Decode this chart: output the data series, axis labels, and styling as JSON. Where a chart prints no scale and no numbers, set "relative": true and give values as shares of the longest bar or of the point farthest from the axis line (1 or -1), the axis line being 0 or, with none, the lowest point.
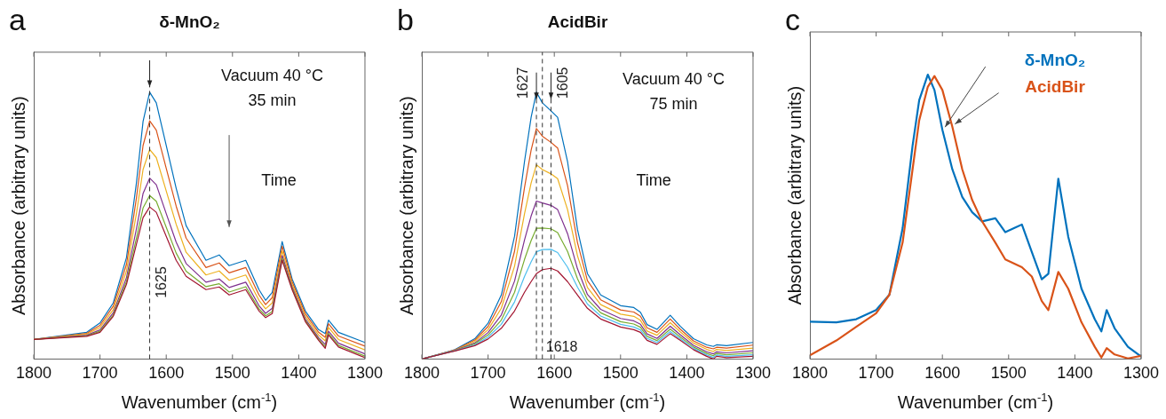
{
  "chart_data": [
    {
      "type": "line",
      "title": "δ-MnO₂",
      "xlabel": "Wavenumber (cm$^{-1}$)",
      "ylabel": "Absorbance (arbitrary units)",
      "relative": true,
      "x": [
        1800,
        1720,
        1700,
        1680,
        1660,
        1645,
        1635,
        1625,
        1615,
        1600,
        1585,
        1570,
        1540,
        1520,
        1505,
        1480,
        1460,
        1450,
        1440,
        1425,
        1410,
        1390,
        1370,
        1360,
        1355,
        1340,
        1300
      ],
      "xlim": [
        1800,
        1300
      ],
      "xticks": [
        1800,
        1700,
        1600,
        1500,
        1400,
        1300
      ],
      "legend": false,
      "grid": false,
      "line_style": "solid",
      "series": [
        {
          "color": "#0072bd",
          "values": [
            0.073,
            0.1,
            0.135,
            0.21,
            0.38,
            0.66,
            0.89,
            1.0,
            0.96,
            0.8,
            0.64,
            0.5,
            0.37,
            0.39,
            0.35,
            0.37,
            0.26,
            0.22,
            0.25,
            0.44,
            0.3,
            0.18,
            0.11,
            0.095,
            0.146,
            0.1,
            0.062
          ]
        },
        {
          "color": "#d95319",
          "values": [
            0.073,
            0.096,
            0.126,
            0.198,
            0.355,
            0.603,
            0.8,
            0.893,
            0.858,
            0.715,
            0.573,
            0.453,
            0.343,
            0.36,
            0.323,
            0.343,
            0.24,
            0.204,
            0.23,
            0.423,
            0.29,
            0.17,
            0.1,
            0.081,
            0.132,
            0.086,
            0.048
          ]
        },
        {
          "color": "#edb120",
          "values": [
            0.073,
            0.093,
            0.118,
            0.185,
            0.33,
            0.545,
            0.71,
            0.785,
            0.755,
            0.63,
            0.505,
            0.4,
            0.315,
            0.33,
            0.295,
            0.315,
            0.22,
            0.188,
            0.21,
            0.405,
            0.28,
            0.16,
            0.09,
            0.068,
            0.118,
            0.073,
            0.034
          ]
        },
        {
          "color": "#7e2f8e",
          "values": [
            0.073,
            0.089,
            0.109,
            0.173,
            0.305,
            0.488,
            0.62,
            0.678,
            0.653,
            0.545,
            0.438,
            0.358,
            0.288,
            0.3,
            0.268,
            0.288,
            0.2,
            0.171,
            0.19,
            0.388,
            0.27,
            0.15,
            0.08,
            0.054,
            0.104,
            0.059,
            0.019
          ]
        },
        {
          "color": "#77ac30",
          "values": [
            0.073,
            0.087,
            0.104,
            0.165,
            0.29,
            0.453,
            0.566,
            0.613,
            0.591,
            0.494,
            0.397,
            0.329,
            0.271,
            0.282,
            0.251,
            0.271,
            0.188,
            0.162,
            0.178,
            0.377,
            0.264,
            0.144,
            0.074,
            0.046,
            0.096,
            0.051,
            0.011
          ]
        },
        {
          "color": "#a2142f",
          "values": [
            0.073,
            0.085,
            0.1,
            0.16,
            0.28,
            0.43,
            0.53,
            0.57,
            0.55,
            0.46,
            0.37,
            0.31,
            0.26,
            0.27,
            0.24,
            0.26,
            0.18,
            0.155,
            0.17,
            0.37,
            0.26,
            0.14,
            0.07,
            0.04,
            0.09,
            0.045,
            0.005
          ]
        }
      ],
      "ref_lines": [
        {
          "axis": "x",
          "value": 1625,
          "label": "1625",
          "line_style": "dashed",
          "color": "#333333"
        }
      ],
      "annotations": [
        "a",
        "Vacuum 40 °C",
        "35 min",
        "Time"
      ]
    },
    {
      "type": "line",
      "title": "AcidBir",
      "xlabel": "Wavenumber (cm$^{-1}$)",
      "ylabel": "Absorbance (arbitrary units)",
      "relative": true,
      "x": [
        1800,
        1750,
        1720,
        1700,
        1680,
        1660,
        1645,
        1635,
        1627,
        1618,
        1605,
        1595,
        1580,
        1565,
        1550,
        1530,
        1500,
        1480,
        1470,
        1460,
        1445,
        1425,
        1410,
        1390,
        1370,
        1360,
        1355,
        1340,
        1300
      ],
      "xlim": [
        1800,
        1300
      ],
      "xticks": [
        1800,
        1700,
        1600,
        1500,
        1400,
        1300
      ],
      "legend": false,
      "grid": false,
      "line_style": "solid",
      "series": [
        {
          "color": "#0072bd",
          "values": [
            0,
            0.035,
            0.076,
            0.134,
            0.24,
            0.46,
            0.74,
            0.906,
            1.0,
            0.96,
            0.93,
            0.906,
            0.74,
            0.485,
            0.32,
            0.24,
            0.2,
            0.193,
            0.175,
            0.129,
            0.111,
            0.164,
            0.123,
            0.076,
            0.053,
            0.047,
            0.053,
            0.05,
            0.062
          ]
        },
        {
          "color": "#d95319",
          "values": [
            0,
            0.034,
            0.071,
            0.122,
            0.215,
            0.404,
            0.642,
            0.783,
            0.864,
            0.835,
            0.812,
            0.791,
            0.65,
            0.436,
            0.294,
            0.222,
            0.184,
            0.176,
            0.16,
            0.117,
            0.1,
            0.15,
            0.112,
            0.068,
            0.044,
            0.038,
            0.044,
            0.041,
            0.052
          ]
        },
        {
          "color": "#edb120",
          "values": [
            0,
            0.033,
            0.066,
            0.11,
            0.19,
            0.348,
            0.544,
            0.66,
            0.728,
            0.71,
            0.694,
            0.676,
            0.56,
            0.387,
            0.268,
            0.204,
            0.168,
            0.16,
            0.145,
            0.105,
            0.089,
            0.136,
            0.102,
            0.06,
            0.036,
            0.028,
            0.036,
            0.032,
            0.041
          ]
        },
        {
          "color": "#7e2f8e",
          "values": [
            0,
            0.032,
            0.06,
            0.099,
            0.165,
            0.292,
            0.446,
            0.536,
            0.592,
            0.585,
            0.576,
            0.56,
            0.47,
            0.338,
            0.242,
            0.186,
            0.152,
            0.143,
            0.13,
            0.094,
            0.077,
            0.123,
            0.091,
            0.051,
            0.027,
            0.019,
            0.027,
            0.023,
            0.031
          ]
        },
        {
          "color": "#77ac30",
          "values": [
            0,
            0.031,
            0.057,
            0.09,
            0.146,
            0.25,
            0.373,
            0.444,
            0.49,
            0.491,
            0.488,
            0.474,
            0.403,
            0.301,
            0.223,
            0.173,
            0.14,
            0.131,
            0.119,
            0.085,
            0.069,
            0.112,
            0.083,
            0.045,
            0.021,
            0.012,
            0.021,
            0.016,
            0.023
          ]
        },
        {
          "color": "#4dbeee",
          "values": [
            0,
            0.031,
            0.053,
            0.082,
            0.13,
            0.214,
            0.309,
            0.364,
            0.402,
            0.41,
            0.411,
            0.399,
            0.344,
            0.269,
            0.206,
            0.161,
            0.13,
            0.12,
            0.109,
            0.077,
            0.062,
            0.103,
            0.076,
            0.04,
            0.015,
            0.006,
            0.015,
            0.01,
            0.016
          ]
        },
        {
          "color": "#a2142f",
          "values": [
            0,
            0.03,
            0.05,
            0.075,
            0.115,
            0.18,
            0.25,
            0.29,
            0.32,
            0.335,
            0.34,
            0.33,
            0.29,
            0.24,
            0.19,
            0.15,
            0.12,
            0.11,
            0.1,
            0.07,
            0.055,
            0.095,
            0.07,
            0.035,
            0.01,
            0.0,
            0.01,
            0.005,
            0.01
          ]
        }
      ],
      "ref_lines": [
        {
          "axis": "x",
          "value": 1627,
          "label": "1627",
          "line_style": "dashed",
          "color": "#333333"
        },
        {
          "axis": "x",
          "value": 1605,
          "label": "1605",
          "line_style": "dashed",
          "color": "#333333"
        },
        {
          "axis": "x",
          "value": 1618,
          "label": "1618",
          "line_style": "dashed",
          "color": "#333333"
        }
      ],
      "annotations": [
        "b",
        "Vacuum 40 °C",
        "75 min",
        "Time"
      ]
    },
    {
      "type": "line",
      "xlabel": "Wavenumber (cm$^{-1}$)",
      "ylabel": "Absorbance (arbitrary units)",
      "relative": true,
      "x": [
        1800,
        1760,
        1730,
        1700,
        1680,
        1660,
        1645,
        1635,
        1622,
        1612,
        1600,
        1585,
        1570,
        1555,
        1540,
        1520,
        1505,
        1480,
        1465,
        1450,
        1440,
        1425,
        1410,
        1390,
        1370,
        1360,
        1352,
        1340,
        1320,
        1300
      ],
      "xlim": [
        1800,
        1300
      ],
      "xticks": [
        1800,
        1700,
        1600,
        1500,
        1400,
        1300
      ],
      "legend": false,
      "grid": false,
      "line_style": "solid",
      "series": [
        {
          "name": "δ-MnO₂",
          "color": "#0072bd",
          "values": [
            0.131,
            0.129,
            0.14,
            0.172,
            0.226,
            0.46,
            0.75,
            0.91,
            1.0,
            0.946,
            0.806,
            0.667,
            0.57,
            0.516,
            0.484,
            0.495,
            0.446,
            0.473,
            0.376,
            0.28,
            0.3,
            0.634,
            0.43,
            0.247,
            0.14,
            0.097,
            0.172,
            0.108,
            0.043,
            0.009
          ]
        },
        {
          "name": "AcidBir",
          "color": "#d95319",
          "values": [
            0.013,
            0.065,
            0.113,
            0.161,
            0.226,
            0.41,
            0.667,
            0.839,
            0.957,
            0.995,
            0.946,
            0.817,
            0.667,
            0.559,
            0.484,
            0.409,
            0.35,
            0.323,
            0.29,
            0.204,
            0.172,
            0.306,
            0.247,
            0.129,
            0.043,
            0.005,
            0.038,
            0.016,
            0.002,
            0.011
          ]
        }
      ],
      "annotations": [
        "c"
      ]
    }
  ]
}
